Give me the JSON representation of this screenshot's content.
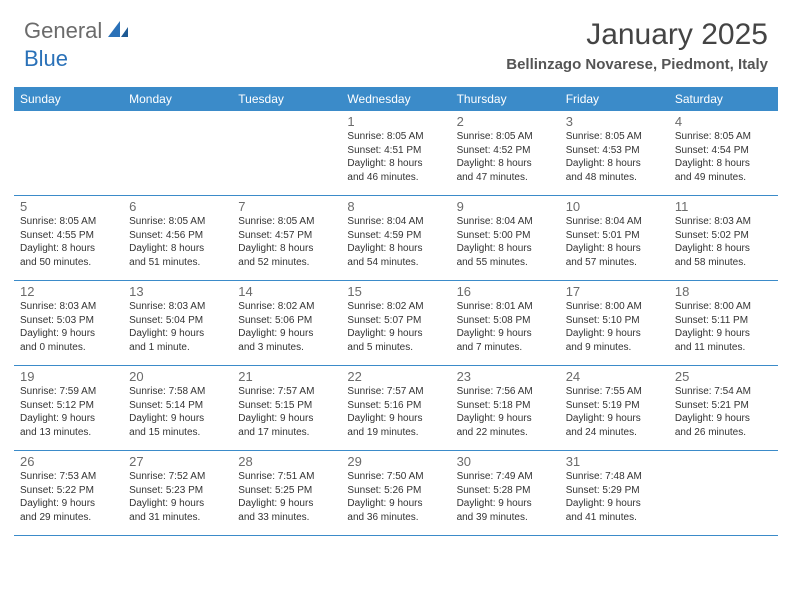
{
  "logo": {
    "general": "General",
    "blue": "Blue"
  },
  "title": "January 2025",
  "subtitle": "Bellinzago Novarese, Piedmont, Italy",
  "colors": {
    "header_bar": "#3b8bc9",
    "header_text": "#ffffff",
    "logo_gray": "#6b6b6b",
    "logo_blue": "#2a71b8",
    "divider": "#3b8bc9",
    "daynum": "#6b6b6b",
    "text": "#333333",
    "background": "#ffffff"
  },
  "dow": [
    "Sunday",
    "Monday",
    "Tuesday",
    "Wednesday",
    "Thursday",
    "Friday",
    "Saturday"
  ],
  "weeks": [
    [
      {
        "n": "",
        "sr": "",
        "ss": "",
        "dl1": "",
        "dl2": "",
        "empty": true
      },
      {
        "n": "",
        "sr": "",
        "ss": "",
        "dl1": "",
        "dl2": "",
        "empty": true
      },
      {
        "n": "",
        "sr": "",
        "ss": "",
        "dl1": "",
        "dl2": "",
        "empty": true
      },
      {
        "n": "1",
        "sr": "Sunrise: 8:05 AM",
        "ss": "Sunset: 4:51 PM",
        "dl1": "Daylight: 8 hours",
        "dl2": "and 46 minutes."
      },
      {
        "n": "2",
        "sr": "Sunrise: 8:05 AM",
        "ss": "Sunset: 4:52 PM",
        "dl1": "Daylight: 8 hours",
        "dl2": "and 47 minutes."
      },
      {
        "n": "3",
        "sr": "Sunrise: 8:05 AM",
        "ss": "Sunset: 4:53 PM",
        "dl1": "Daylight: 8 hours",
        "dl2": "and 48 minutes."
      },
      {
        "n": "4",
        "sr": "Sunrise: 8:05 AM",
        "ss": "Sunset: 4:54 PM",
        "dl1": "Daylight: 8 hours",
        "dl2": "and 49 minutes."
      }
    ],
    [
      {
        "n": "5",
        "sr": "Sunrise: 8:05 AM",
        "ss": "Sunset: 4:55 PM",
        "dl1": "Daylight: 8 hours",
        "dl2": "and 50 minutes."
      },
      {
        "n": "6",
        "sr": "Sunrise: 8:05 AM",
        "ss": "Sunset: 4:56 PM",
        "dl1": "Daylight: 8 hours",
        "dl2": "and 51 minutes."
      },
      {
        "n": "7",
        "sr": "Sunrise: 8:05 AM",
        "ss": "Sunset: 4:57 PM",
        "dl1": "Daylight: 8 hours",
        "dl2": "and 52 minutes."
      },
      {
        "n": "8",
        "sr": "Sunrise: 8:04 AM",
        "ss": "Sunset: 4:59 PM",
        "dl1": "Daylight: 8 hours",
        "dl2": "and 54 minutes."
      },
      {
        "n": "9",
        "sr": "Sunrise: 8:04 AM",
        "ss": "Sunset: 5:00 PM",
        "dl1": "Daylight: 8 hours",
        "dl2": "and 55 minutes."
      },
      {
        "n": "10",
        "sr": "Sunrise: 8:04 AM",
        "ss": "Sunset: 5:01 PM",
        "dl1": "Daylight: 8 hours",
        "dl2": "and 57 minutes."
      },
      {
        "n": "11",
        "sr": "Sunrise: 8:03 AM",
        "ss": "Sunset: 5:02 PM",
        "dl1": "Daylight: 8 hours",
        "dl2": "and 58 minutes."
      }
    ],
    [
      {
        "n": "12",
        "sr": "Sunrise: 8:03 AM",
        "ss": "Sunset: 5:03 PM",
        "dl1": "Daylight: 9 hours",
        "dl2": "and 0 minutes."
      },
      {
        "n": "13",
        "sr": "Sunrise: 8:03 AM",
        "ss": "Sunset: 5:04 PM",
        "dl1": "Daylight: 9 hours",
        "dl2": "and 1 minute."
      },
      {
        "n": "14",
        "sr": "Sunrise: 8:02 AM",
        "ss": "Sunset: 5:06 PM",
        "dl1": "Daylight: 9 hours",
        "dl2": "and 3 minutes."
      },
      {
        "n": "15",
        "sr": "Sunrise: 8:02 AM",
        "ss": "Sunset: 5:07 PM",
        "dl1": "Daylight: 9 hours",
        "dl2": "and 5 minutes."
      },
      {
        "n": "16",
        "sr": "Sunrise: 8:01 AM",
        "ss": "Sunset: 5:08 PM",
        "dl1": "Daylight: 9 hours",
        "dl2": "and 7 minutes."
      },
      {
        "n": "17",
        "sr": "Sunrise: 8:00 AM",
        "ss": "Sunset: 5:10 PM",
        "dl1": "Daylight: 9 hours",
        "dl2": "and 9 minutes."
      },
      {
        "n": "18",
        "sr": "Sunrise: 8:00 AM",
        "ss": "Sunset: 5:11 PM",
        "dl1": "Daylight: 9 hours",
        "dl2": "and 11 minutes."
      }
    ],
    [
      {
        "n": "19",
        "sr": "Sunrise: 7:59 AM",
        "ss": "Sunset: 5:12 PM",
        "dl1": "Daylight: 9 hours",
        "dl2": "and 13 minutes."
      },
      {
        "n": "20",
        "sr": "Sunrise: 7:58 AM",
        "ss": "Sunset: 5:14 PM",
        "dl1": "Daylight: 9 hours",
        "dl2": "and 15 minutes."
      },
      {
        "n": "21",
        "sr": "Sunrise: 7:57 AM",
        "ss": "Sunset: 5:15 PM",
        "dl1": "Daylight: 9 hours",
        "dl2": "and 17 minutes."
      },
      {
        "n": "22",
        "sr": "Sunrise: 7:57 AM",
        "ss": "Sunset: 5:16 PM",
        "dl1": "Daylight: 9 hours",
        "dl2": "and 19 minutes."
      },
      {
        "n": "23",
        "sr": "Sunrise: 7:56 AM",
        "ss": "Sunset: 5:18 PM",
        "dl1": "Daylight: 9 hours",
        "dl2": "and 22 minutes."
      },
      {
        "n": "24",
        "sr": "Sunrise: 7:55 AM",
        "ss": "Sunset: 5:19 PM",
        "dl1": "Daylight: 9 hours",
        "dl2": "and 24 minutes."
      },
      {
        "n": "25",
        "sr": "Sunrise: 7:54 AM",
        "ss": "Sunset: 5:21 PM",
        "dl1": "Daylight: 9 hours",
        "dl2": "and 26 minutes."
      }
    ],
    [
      {
        "n": "26",
        "sr": "Sunrise: 7:53 AM",
        "ss": "Sunset: 5:22 PM",
        "dl1": "Daylight: 9 hours",
        "dl2": "and 29 minutes."
      },
      {
        "n": "27",
        "sr": "Sunrise: 7:52 AM",
        "ss": "Sunset: 5:23 PM",
        "dl1": "Daylight: 9 hours",
        "dl2": "and 31 minutes."
      },
      {
        "n": "28",
        "sr": "Sunrise: 7:51 AM",
        "ss": "Sunset: 5:25 PM",
        "dl1": "Daylight: 9 hours",
        "dl2": "and 33 minutes."
      },
      {
        "n": "29",
        "sr": "Sunrise: 7:50 AM",
        "ss": "Sunset: 5:26 PM",
        "dl1": "Daylight: 9 hours",
        "dl2": "and 36 minutes."
      },
      {
        "n": "30",
        "sr": "Sunrise: 7:49 AM",
        "ss": "Sunset: 5:28 PM",
        "dl1": "Daylight: 9 hours",
        "dl2": "and 39 minutes."
      },
      {
        "n": "31",
        "sr": "Sunrise: 7:48 AM",
        "ss": "Sunset: 5:29 PM",
        "dl1": "Daylight: 9 hours",
        "dl2": "and 41 minutes."
      },
      {
        "n": "",
        "sr": "",
        "ss": "",
        "dl1": "",
        "dl2": "",
        "empty": true
      }
    ]
  ]
}
